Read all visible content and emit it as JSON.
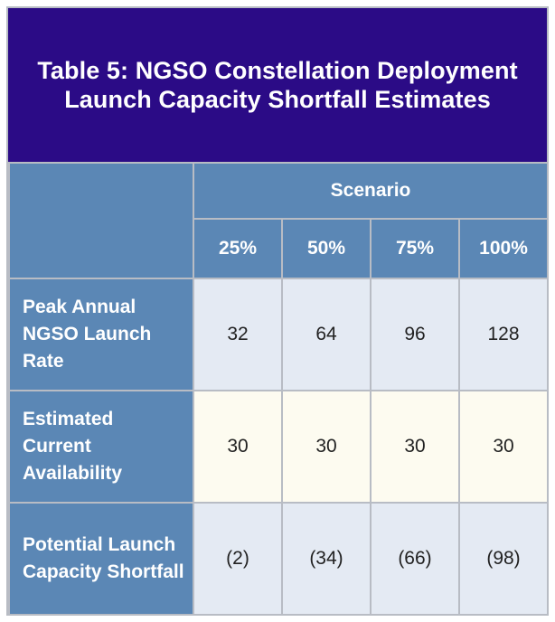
{
  "table": {
    "title": "Table 5: NGSO Constellation Deployment Launch Capacity Shortfall Estimates",
    "group_header": "Scenario",
    "columns": [
      "25%",
      "50%",
      "75%",
      "100%"
    ],
    "rows": [
      {
        "label": "Peak Annual NGSO Launch Rate",
        "values": [
          "32",
          "64",
          "96",
          "128"
        ]
      },
      {
        "label": "Estimated Current Availability",
        "values": [
          "30",
          "30",
          "30",
          "30"
        ]
      },
      {
        "label": "Potential Launch Capacity Shortfall",
        "values": [
          "(2)",
          "(34)",
          "(66)",
          "(98)"
        ]
      }
    ]
  },
  "colors": {
    "title_background": "#2b0b86",
    "header_background": "#5b87b5",
    "row_light_blue": "#e4eaf3",
    "row_cream": "#fdfbf0",
    "grid_lines": "#b8bcc4"
  }
}
